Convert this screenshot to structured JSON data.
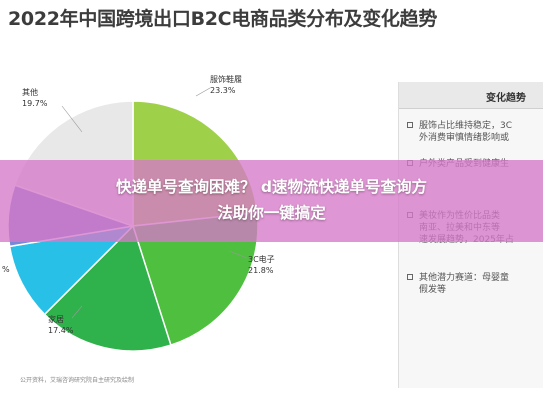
{
  "chart_data": {
    "type": "pie",
    "title": "2022年中国跨境出口B2C电商品类分布及变化趋势",
    "slices": [
      {
        "label": "服饰鞋履",
        "value": 23.3,
        "display": "23.3%",
        "color": "#9fd04a"
      },
      {
        "label": "3C电子",
        "value": 21.8,
        "display": "21.8%",
        "color": "#4fbf3f"
      },
      {
        "label": "家居",
        "value": 17.4,
        "display": "17.4%",
        "color": "#2fb24b"
      },
      {
        "label": "",
        "value": 9.9,
        "display": "",
        "color": "#29c0e8"
      },
      {
        "label": "",
        "value": 7.9,
        "display": "",
        "color": "#7a86d6"
      },
      {
        "label": "其他",
        "value": 19.7,
        "display": "19.7%",
        "color": "#e8e8e8"
      }
    ],
    "partial_label": "%"
  },
  "trend_panel": {
    "title": "变化趋势",
    "items": [
      {
        "lines": [
          "服饰占比维持稳定，3C",
          "外消费审慎情绪影响或"
        ]
      },
      {
        "lines": [
          "户外类产品受到健康生"
        ]
      },
      {
        "lines": [
          "美妆作为性价比品类",
          "南亚、拉美和中东等",
          "速发展趋势，2025年占"
        ]
      },
      {
        "lines": [
          "其他潜力赛道：母婴童",
          "假发等"
        ]
      }
    ]
  },
  "source": "公开资料，艾瑞咨询研究院自主研究及绘制",
  "banner": {
    "line1": "快递单号查询困难？ d速物流快递单号查询方",
    "line2": "法助你一键搞定"
  }
}
